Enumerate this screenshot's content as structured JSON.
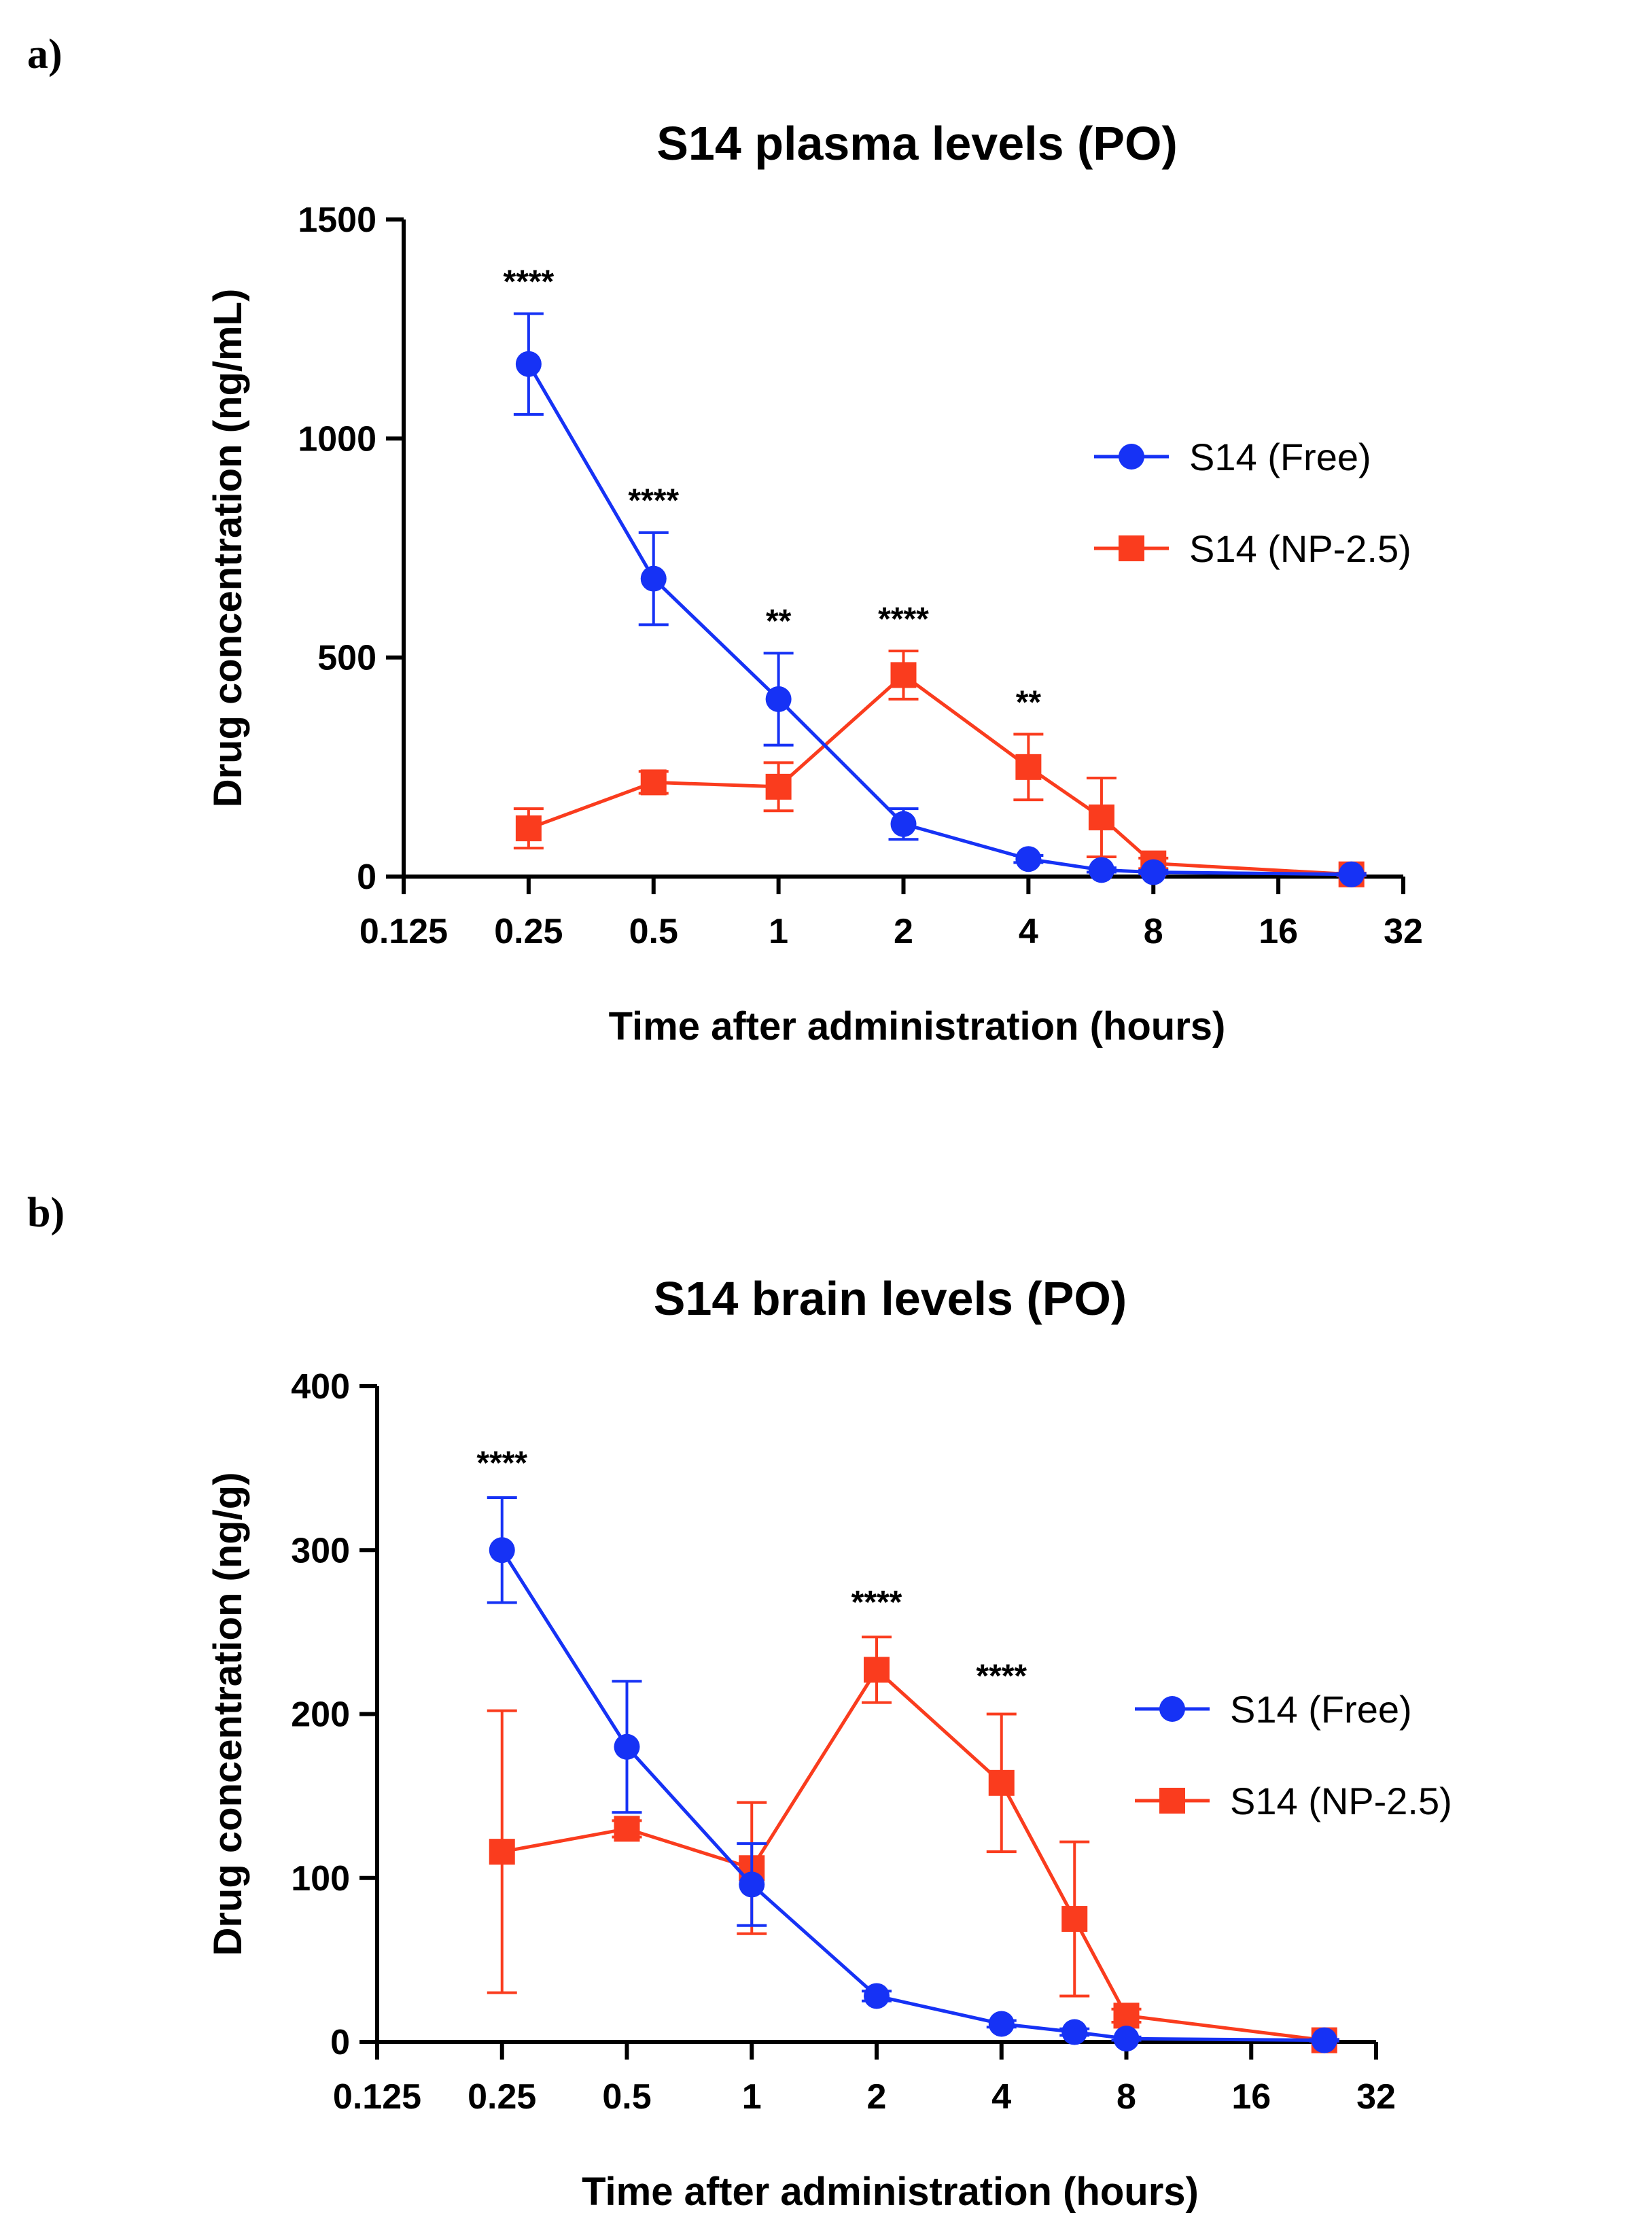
{
  "colors": {
    "free": "#1632f5",
    "np": "#fa3c1e",
    "axis": "#000000"
  },
  "chart_data": [
    {
      "type": "line",
      "panel_label": "a)",
      "title": "S14 plasma levels (PO)",
      "xlabel": "Time after administration (hours)",
      "ylabel": "Drug concentration (ng/mL)",
      "xscale": "log2",
      "xlim": [
        0.125,
        32
      ],
      "ylim": [
        0,
        1500
      ],
      "xticks": [
        0.125,
        0.25,
        0.5,
        1,
        2,
        4,
        8,
        16,
        32
      ],
      "xtick_labels": [
        "0.125",
        "0.25",
        "0.5",
        "1",
        "2",
        "4",
        "8",
        "16",
        "32"
      ],
      "yticks": [
        0,
        500,
        1000,
        1500
      ],
      "ytick_labels": [
        "0",
        "500",
        "1000",
        "1500"
      ],
      "legend_position": "right",
      "series": [
        {
          "name": "S14 (Free)",
          "marker": "circle",
          "color_key": "free",
          "x": [
            0.25,
            0.5,
            1,
            2,
            4,
            6,
            8,
            24
          ],
          "y": [
            1170,
            680,
            405,
            120,
            40,
            15,
            10,
            5
          ],
          "err": [
            115,
            105,
            105,
            35,
            8,
            5,
            4,
            2
          ]
        },
        {
          "name": "S14 (NP-2.5)",
          "marker": "square",
          "color_key": "np",
          "x": [
            0.25,
            0.5,
            1,
            2,
            4,
            6,
            8,
            24
          ],
          "y": [
            110,
            215,
            205,
            460,
            250,
            135,
            30,
            5
          ],
          "err": [
            45,
            25,
            55,
            55,
            75,
            90,
            12,
            3
          ]
        }
      ],
      "annotations": [
        {
          "x": 0.25,
          "y": 1290,
          "text": "****"
        },
        {
          "x": 0.5,
          "y": 790,
          "text": "****"
        },
        {
          "x": 1,
          "y": 515,
          "text": "**"
        },
        {
          "x": 2,
          "y": 520,
          "text": "****"
        },
        {
          "x": 4,
          "y": 330,
          "text": "**"
        }
      ]
    },
    {
      "type": "line",
      "panel_label": "b)",
      "title": "S14 brain levels (PO)",
      "xlabel": "Time after administration (hours)",
      "ylabel": "Drug concentration (ng/g)",
      "xscale": "log2",
      "xlim": [
        0.125,
        32
      ],
      "ylim": [
        0,
        400
      ],
      "xticks": [
        0.125,
        0.25,
        0.5,
        1,
        2,
        4,
        8,
        16,
        32
      ],
      "xtick_labels": [
        "0.125",
        "0.25",
        "0.5",
        "1",
        "2",
        "4",
        "8",
        "16",
        "32"
      ],
      "yticks": [
        0,
        100,
        200,
        300,
        400
      ],
      "ytick_labels": [
        "0",
        "100",
        "200",
        "300",
        "400"
      ],
      "legend_position": "right",
      "series": [
        {
          "name": "S14 (Free)",
          "marker": "circle",
          "color_key": "free",
          "x": [
            0.25,
            0.5,
            1,
            2,
            4,
            6,
            8,
            24
          ],
          "y": [
            300,
            180,
            96,
            28,
            11,
            6,
            2,
            1
          ],
          "err": [
            32,
            40,
            25,
            3,
            2,
            2,
            1,
            0.5
          ]
        },
        {
          "name": "S14 (NP-2.5)",
          "marker": "square",
          "color_key": "np",
          "x": [
            0.25,
            0.5,
            1,
            2,
            4,
            6,
            8,
            24
          ],
          "y": [
            116,
            130,
            106,
            227,
            158,
            75,
            16,
            1
          ],
          "err": [
            86,
            5,
            40,
            20,
            42,
            47,
            4,
            0.5
          ]
        }
      ],
      "annotations": [
        {
          "x": 0.25,
          "y": 335,
          "text": "****"
        },
        {
          "x": 2,
          "y": 250,
          "text": "****"
        },
        {
          "x": 4,
          "y": 205,
          "text": "****"
        }
      ]
    }
  ]
}
